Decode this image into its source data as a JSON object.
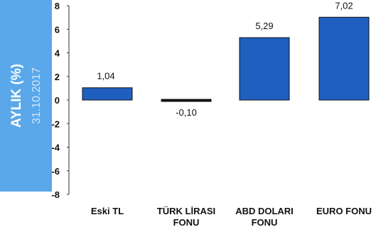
{
  "side_label": {
    "title": "AYLIK (%)",
    "date": "31.10.2017"
  },
  "colors": {
    "panel": "#5aa8ea",
    "bar_fill": "#1f5fbf",
    "bar_stroke": "#111111",
    "axis": "#333333"
  },
  "chart_data": {
    "type": "bar",
    "categories": [
      [
        "Eski TL"
      ],
      [
        "TÜRK LİRASI",
        "FONU"
      ],
      [
        "ABD DOLARI",
        "FONU"
      ],
      [
        "EURO FONU"
      ]
    ],
    "values": [
      1.04,
      -0.1,
      5.29,
      7.02
    ],
    "value_labels": [
      "1,04",
      "-0,10",
      "5,29",
      "7,02"
    ],
    "ylim": [
      -8,
      8
    ],
    "yticks": [
      -8,
      -6,
      -4,
      -2,
      0,
      2,
      4,
      6,
      8
    ],
    "title": "",
    "xlabel": "",
    "ylabel": "",
    "grid": false
  }
}
